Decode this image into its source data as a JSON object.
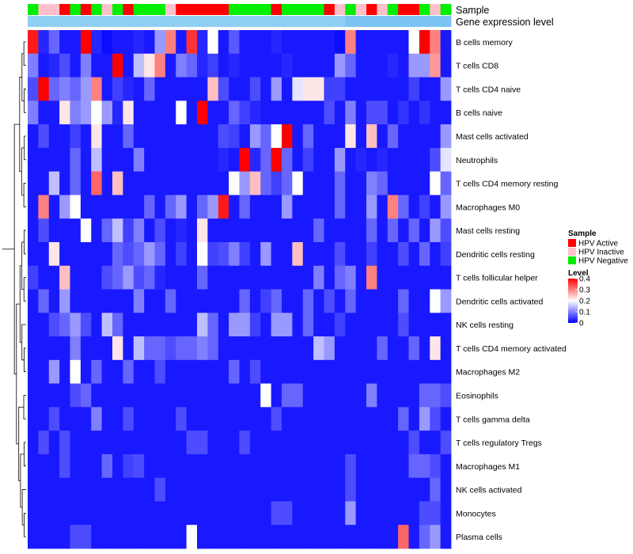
{
  "chart_data": {
    "type": "heatmap",
    "title": "",
    "annotations": [
      {
        "name": "Sample",
        "kind": "categorical"
      },
      {
        "name": "Gene expression level",
        "kind": "continuous"
      }
    ],
    "sample_legend": {
      "title": "Sample",
      "categories": [
        "HPV Active",
        "HPV Inactive",
        "HPV Negative"
      ],
      "colors": [
        "#ff0000",
        "#ffc0cb",
        "#00ee00"
      ]
    },
    "level_legend": {
      "title": "Level",
      "ticks": [
        0.4,
        0.3,
        0.2,
        0.1,
        0
      ],
      "tick_labels": [
        "0.4",
        "0.3",
        "0.2",
        "0.1",
        "0"
      ],
      "range": [
        0,
        0.4
      ],
      "colors": [
        "#0000ff",
        "#ffffff",
        "#ff0000"
      ]
    },
    "sample_groups": [
      "HPV Negative",
      "HPV Inactive",
      "HPV Inactive",
      "HPV Active",
      "HPV Negative",
      "HPV Active",
      "HPV Negative",
      "HPV Inactive",
      "HPV Negative",
      "HPV Active",
      "HPV Negative",
      "HPV Negative",
      "HPV Negative",
      "HPV Inactive",
      "HPV Active",
      "HPV Active",
      "HPV Active",
      "HPV Active",
      "HPV Active",
      "HPV Negative",
      "HPV Negative",
      "HPV Negative",
      "HPV Negative",
      "HPV Active",
      "HPV Negative",
      "HPV Negative",
      "HPV Negative",
      "HPV Negative",
      "HPV Active",
      "HPV Inactive",
      "HPV Negative",
      "HPV Inactive",
      "HPV Active",
      "HPV Inactive",
      "HPV Negative",
      "HPV Active",
      "HPV Active",
      "HPV Negative",
      "HPV Inactive",
      "HPV Negative"
    ],
    "expression_level": [
      0.8,
      0.8,
      0.8,
      0.8,
      0.8,
      0.8,
      0.8,
      0.8,
      0.8,
      0.8,
      0.8,
      0.8,
      0.8,
      0.8,
      0.8,
      0.8,
      0.8,
      0.8,
      0.8,
      0.8,
      0.8,
      0.8,
      0.8,
      0.8,
      0.8,
      0.8,
      0.8,
      0.8,
      0.8,
      0.8,
      0.5,
      0.5,
      0.5,
      0.5,
      0.5,
      0.5,
      0.5,
      0.5,
      0.5,
      0.5
    ],
    "rows": [
      "B cells memory",
      "T cells CD8",
      "T cells CD4 naive",
      "B cells naive",
      "Mast cells activated",
      "Neutrophils",
      "T cells CD4 memory resting",
      "Macrophages M0",
      "Mast cells resting",
      "Dendritic cells resting",
      "T cells follicular helper",
      "Dendritic cells activated",
      "NK cells resting",
      "T cells CD4 memory activated",
      "Macrophages M2",
      "Eosinophils",
      "T cells gamma delta",
      "T cells regulatory  Tregs",
      "Macrophages M1",
      "NK cells activated",
      "Monocytes",
      "Plasma cells"
    ],
    "values": [
      [
        0.38,
        0.03,
        0.08,
        0.02,
        0.02,
        0.4,
        0.03,
        0.01,
        0.02,
        0.02,
        0.03,
        0.02,
        0.12,
        0.3,
        0.02,
        0.36,
        0.03,
        0.2,
        0.02,
        0.07,
        0.02,
        0.02,
        0.02,
        0.03,
        0.02,
        0.02,
        0.02,
        0.02,
        0.02,
        0.01,
        0.3,
        0.02,
        0.02,
        0.02,
        0.02,
        0.02,
        0.2,
        0.4,
        0.3,
        0.02
      ],
      [
        0.1,
        0.02,
        0.03,
        0.06,
        0.02,
        0.1,
        0.02,
        0.02,
        0.4,
        0.02,
        0.15,
        0.22,
        0.3,
        0.02,
        0.1,
        0.08,
        0.03,
        0.05,
        0.02,
        0.03,
        0.02,
        0.02,
        0.02,
        0.02,
        0.03,
        0.02,
        0.02,
        0.02,
        0.02,
        0.12,
        0.08,
        0.02,
        0.02,
        0.02,
        0.03,
        0.02,
        0.12,
        0.12,
        0.28,
        0.02
      ],
      [
        0.06,
        0.4,
        0.08,
        0.1,
        0.08,
        0.12,
        0.3,
        0.02,
        0.05,
        0.03,
        0.02,
        0.08,
        0.02,
        0.02,
        0.02,
        0.02,
        0.02,
        0.25,
        0.06,
        0.02,
        0.02,
        0.06,
        0.02,
        0.12,
        0.02,
        0.18,
        0.22,
        0.22,
        0.05,
        0.05,
        0.02,
        0.02,
        0.02,
        0.02,
        0.02,
        0.02,
        0.05,
        0.02,
        0.02,
        0.12
      ],
      [
        0.1,
        0.02,
        0.02,
        0.22,
        0.1,
        0.12,
        0.2,
        0.12,
        0.03,
        0.22,
        0.02,
        0.02,
        0.02,
        0.02,
        0.2,
        0.02,
        0.4,
        0.02,
        0.02,
        0.08,
        0.05,
        0.03,
        0.02,
        0.02,
        0.02,
        0.02,
        0.02,
        0.02,
        0.06,
        0.02,
        0.1,
        0.02,
        0.06,
        0.06,
        0.02,
        0.04,
        0.02,
        0.04,
        0.02,
        0.02
      ],
      [
        0.02,
        0.06,
        0.02,
        0.02,
        0.05,
        0.02,
        0.22,
        0.02,
        0.02,
        0.08,
        0.02,
        0.02,
        0.02,
        0.02,
        0.02,
        0.02,
        0.02,
        0.02,
        0.06,
        0.05,
        0.02,
        0.12,
        0.08,
        0.2,
        0.4,
        0.02,
        0.08,
        0.02,
        0.02,
        0.02,
        0.22,
        0.02,
        0.25,
        0.02,
        0.08,
        0.02,
        0.02,
        0.02,
        0.02,
        0.12
      ],
      [
        0.02,
        0.02,
        0.02,
        0.02,
        0.08,
        0.02,
        0.15,
        0.02,
        0.02,
        0.02,
        0.1,
        0.02,
        0.02,
        0.02,
        0.02,
        0.02,
        0.02,
        0.02,
        0.03,
        0.02,
        0.4,
        0.03,
        0.08,
        0.4,
        0.08,
        0.02,
        0.05,
        0.02,
        0.02,
        0.12,
        0.02,
        0.03,
        0.02,
        0.03,
        0.02,
        0.02,
        0.02,
        0.02,
        0.06,
        0.18
      ],
      [
        0.02,
        0.02,
        0.15,
        0.02,
        0.08,
        0.02,
        0.32,
        0.02,
        0.25,
        0.02,
        0.02,
        0.02,
        0.02,
        0.02,
        0.02,
        0.02,
        0.02,
        0.02,
        0.02,
        0.2,
        0.12,
        0.25,
        0.08,
        0.05,
        0.08,
        0.2,
        0.02,
        0.02,
        0.02,
        0.08,
        0.02,
        0.02,
        0.1,
        0.08,
        0.02,
        0.02,
        0.02,
        0.02,
        0.2,
        0.08
      ],
      [
        0.02,
        0.3,
        0.02,
        0.12,
        0.2,
        0.02,
        0.02,
        0.02,
        0.02,
        0.02,
        0.02,
        0.08,
        0.02,
        0.08,
        0.12,
        0.02,
        0.08,
        0.12,
        0.38,
        0.02,
        0.08,
        0.02,
        0.02,
        0.02,
        0.12,
        0.02,
        0.02,
        0.02,
        0.02,
        0.08,
        0.02,
        0.02,
        0.12,
        0.02,
        0.3,
        0.08,
        0.02,
        0.05,
        0.02,
        0.12
      ],
      [
        0.02,
        0.06,
        0.02,
        0.02,
        0.02,
        0.2,
        0.02,
        0.08,
        0.15,
        0.05,
        0.1,
        0.02,
        0.06,
        0.02,
        0.03,
        0.02,
        0.22,
        0.02,
        0.02,
        0.02,
        0.02,
        0.02,
        0.02,
        0.02,
        0.02,
        0.02,
        0.02,
        0.08,
        0.02,
        0.02,
        0.02,
        0.02,
        0.08,
        0.02,
        0.08,
        0.02,
        0.08,
        0.02,
        0.12,
        0.06
      ],
      [
        0.02,
        0.02,
        0.22,
        0.02,
        0.02,
        0.02,
        0.02,
        0.02,
        0.08,
        0.06,
        0.08,
        0.12,
        0.08,
        0.02,
        0.05,
        0.02,
        0.2,
        0.05,
        0.06,
        0.1,
        0.05,
        0.02,
        0.12,
        0.02,
        0.02,
        0.25,
        0.02,
        0.02,
        0.02,
        0.06,
        0.02,
        0.02,
        0.05,
        0.02,
        0.02,
        0.06,
        0.02,
        0.08,
        0.02,
        0.05
      ],
      [
        0.05,
        0.02,
        0.02,
        0.25,
        0.02,
        0.02,
        0.02,
        0.06,
        0.08,
        0.12,
        0.06,
        0.08,
        0.03,
        0.02,
        0.02,
        0.02,
        0.08,
        0.02,
        0.02,
        0.02,
        0.02,
        0.02,
        0.02,
        0.02,
        0.02,
        0.02,
        0.02,
        0.1,
        0.02,
        0.08,
        0.1,
        0.02,
        0.3,
        0.02,
        0.02,
        0.02,
        0.02,
        0.02,
        0.02,
        0.02
      ],
      [
        0.02,
        0.08,
        0.02,
        0.12,
        0.02,
        0.02,
        0.02,
        0.02,
        0.02,
        0.02,
        0.1,
        0.02,
        0.02,
        0.08,
        0.02,
        0.02,
        0.02,
        0.02,
        0.02,
        0.02,
        0.08,
        0.02,
        0.05,
        0.08,
        0.02,
        0.02,
        0.08,
        0.02,
        0.06,
        0.02,
        0.08,
        0.02,
        0.02,
        0.02,
        0.02,
        0.08,
        0.02,
        0.02,
        0.2,
        0.12
      ],
      [
        0.02,
        0.02,
        0.06,
        0.08,
        0.12,
        0.06,
        0.02,
        0.15,
        0.08,
        0.02,
        0.02,
        0.02,
        0.02,
        0.02,
        0.02,
        0.02,
        0.15,
        0.08,
        0.02,
        0.12,
        0.12,
        0.05,
        0.02,
        0.12,
        0.12,
        0.02,
        0.08,
        0.02,
        0.02,
        0.05,
        0.02,
        0.02,
        0.02,
        0.02,
        0.02,
        0.06,
        0.02,
        0.02,
        0.02,
        0.02
      ],
      [
        0.02,
        0.02,
        0.02,
        0.02,
        0.1,
        0.02,
        0.02,
        0.02,
        0.22,
        0.02,
        0.15,
        0.08,
        0.08,
        0.06,
        0.08,
        0.08,
        0.1,
        0.08,
        0.02,
        0.02,
        0.02,
        0.02,
        0.02,
        0.02,
        0.02,
        0.02,
        0.02,
        0.15,
        0.12,
        0.02,
        0.02,
        0.02,
        0.02,
        0.08,
        0.02,
        0.02,
        0.08,
        0.02,
        0.22,
        0.02
      ],
      [
        0.02,
        0.02,
        0.12,
        0.02,
        0.2,
        0.02,
        0.08,
        0.02,
        0.02,
        0.08,
        0.02,
        0.02,
        0.06,
        0.02,
        0.02,
        0.02,
        0.02,
        0.02,
        0.02,
        0.08,
        0.02,
        0.06,
        0.02,
        0.02,
        0.02,
        0.02,
        0.02,
        0.02,
        0.02,
        0.02,
        0.02,
        0.02,
        0.02,
        0.02,
        0.02,
        0.02,
        0.02,
        0.02,
        0.02,
        0.02
      ],
      [
        0.02,
        0.02,
        0.02,
        0.02,
        0.06,
        0.08,
        0.02,
        0.02,
        0.02,
        0.02,
        0.02,
        0.02,
        0.02,
        0.02,
        0.02,
        0.02,
        0.02,
        0.02,
        0.02,
        0.02,
        0.02,
        0.02,
        0.2,
        0.02,
        0.08,
        0.08,
        0.02,
        0.02,
        0.02,
        0.02,
        0.02,
        0.02,
        0.1,
        0.02,
        0.02,
        0.02,
        0.02,
        0.08,
        0.08,
        0.06
      ],
      [
        0.02,
        0.02,
        0.06,
        0.02,
        0.02,
        0.02,
        0.1,
        0.02,
        0.02,
        0.06,
        0.02,
        0.02,
        0.02,
        0.02,
        0.06,
        0.02,
        0.02,
        0.02,
        0.02,
        0.02,
        0.02,
        0.02,
        0.02,
        0.06,
        0.02,
        0.02,
        0.02,
        0.02,
        0.02,
        0.02,
        0.02,
        0.02,
        0.02,
        0.02,
        0.02,
        0.08,
        0.02,
        0.12,
        0.06,
        0.02
      ],
      [
        0.02,
        0.06,
        0.02,
        0.06,
        0.02,
        0.02,
        0.02,
        0.02,
        0.02,
        0.02,
        0.02,
        0.02,
        0.02,
        0.02,
        0.02,
        0.06,
        0.06,
        0.02,
        0.02,
        0.02,
        0.06,
        0.02,
        0.02,
        0.02,
        0.02,
        0.02,
        0.02,
        0.02,
        0.02,
        0.02,
        0.02,
        0.02,
        0.02,
        0.02,
        0.02,
        0.02,
        0.06,
        0.02,
        0.02,
        0.06
      ],
      [
        0.02,
        0.02,
        0.02,
        0.06,
        0.02,
        0.02,
        0.02,
        0.08,
        0.02,
        0.05,
        0.06,
        0.02,
        0.02,
        0.02,
        0.02,
        0.02,
        0.02,
        0.02,
        0.02,
        0.02,
        0.02,
        0.02,
        0.02,
        0.02,
        0.02,
        0.02,
        0.02,
        0.02,
        0.02,
        0.02,
        0.06,
        0.02,
        0.02,
        0.02,
        0.02,
        0.02,
        0.08,
        0.08,
        0.06,
        0.02
      ],
      [
        0.02,
        0.02,
        0.02,
        0.02,
        0.02,
        0.02,
        0.02,
        0.02,
        0.02,
        0.02,
        0.02,
        0.02,
        0.06,
        0.02,
        0.02,
        0.02,
        0.02,
        0.02,
        0.02,
        0.02,
        0.02,
        0.02,
        0.02,
        0.02,
        0.02,
        0.02,
        0.02,
        0.02,
        0.02,
        0.02,
        0.06,
        0.02,
        0.02,
        0.02,
        0.02,
        0.02,
        0.02,
        0.02,
        0.08,
        0.02
      ],
      [
        0.02,
        0.02,
        0.02,
        0.02,
        0.02,
        0.02,
        0.02,
        0.02,
        0.02,
        0.02,
        0.02,
        0.02,
        0.02,
        0.02,
        0.02,
        0.02,
        0.02,
        0.02,
        0.02,
        0.02,
        0.02,
        0.02,
        0.02,
        0.06,
        0.06,
        0.02,
        0.02,
        0.02,
        0.02,
        0.02,
        0.12,
        0.02,
        0.02,
        0.02,
        0.02,
        0.02,
        0.02,
        0.06,
        0.06,
        0.02
      ],
      [
        0.02,
        0.02,
        0.02,
        0.02,
        0.06,
        0.06,
        0.02,
        0.02,
        0.02,
        0.02,
        0.02,
        0.02,
        0.02,
        0.02,
        0.02,
        0.2,
        0.02,
        0.02,
        0.02,
        0.02,
        0.02,
        0.02,
        0.02,
        0.02,
        0.02,
        0.02,
        0.02,
        0.02,
        0.02,
        0.02,
        0.02,
        0.02,
        0.02,
        0.02,
        0.02,
        0.32,
        0.02,
        0.08,
        0.12,
        0.02
      ]
    ]
  }
}
